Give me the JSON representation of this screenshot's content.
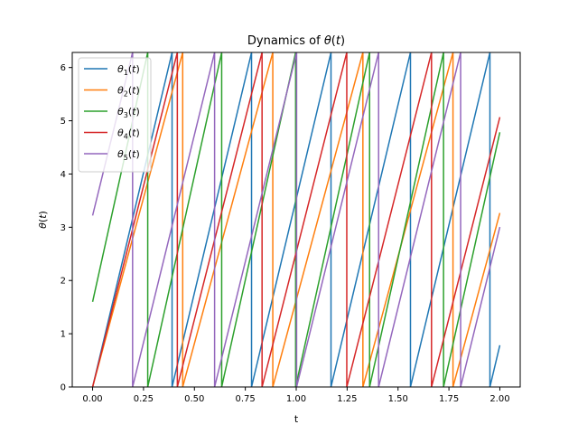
{
  "chart_data": {
    "type": "line",
    "title": "Dynamics of θ(t)",
    "xlabel": "t",
    "ylabel": "θ(t)",
    "xlim": [
      -0.1,
      2.1
    ],
    "ylim": [
      0,
      6.2832
    ],
    "xticks": [
      0.0,
      0.25,
      0.5,
      0.75,
      1.0,
      1.25,
      1.5,
      1.75,
      2.0
    ],
    "xtick_labels": [
      "0.00",
      "0.25",
      "0.50",
      "0.75",
      "1.00",
      "1.25",
      "1.50",
      "1.75",
      "2.00"
    ],
    "yticks": [
      0,
      1,
      2,
      3,
      4,
      5,
      6
    ],
    "ytick_labels": [
      "0",
      "1",
      "2",
      "3",
      "4",
      "5",
      "6"
    ],
    "grid": false,
    "legend_position": "top-left",
    "modulus": 6.2832,
    "series": [
      {
        "name": "θ1(t)",
        "label_base": "θ",
        "label_sub": "1",
        "label_tail": "(t)",
        "color": "#1f77b4",
        "theta0": 0.0,
        "rate": 16.1
      },
      {
        "name": "θ2(t)",
        "label_base": "θ",
        "label_sub": "2",
        "label_tail": "(t)",
        "color": "#ff7f0e",
        "theta0": 0.0,
        "rate": 14.2
      },
      {
        "name": "θ3(t)",
        "label_base": "θ",
        "label_sub": "3",
        "label_tail": "(t)",
        "color": "#2ca02c",
        "theta0": 1.6,
        "rate": 17.3
      },
      {
        "name": "θ4(t)",
        "label_base": "θ",
        "label_sub": "4",
        "label_tail": "(t)",
        "color": "#d62728",
        "theta0": 0.0,
        "rate": 15.1
      },
      {
        "name": "θ5(t)",
        "label_base": "θ",
        "label_sub": "5",
        "label_tail": "(t)",
        "color": "#9467bd",
        "theta0": 3.22,
        "rate": 15.6
      }
    ],
    "x_start": 0.0,
    "x_end": 2.0
  }
}
